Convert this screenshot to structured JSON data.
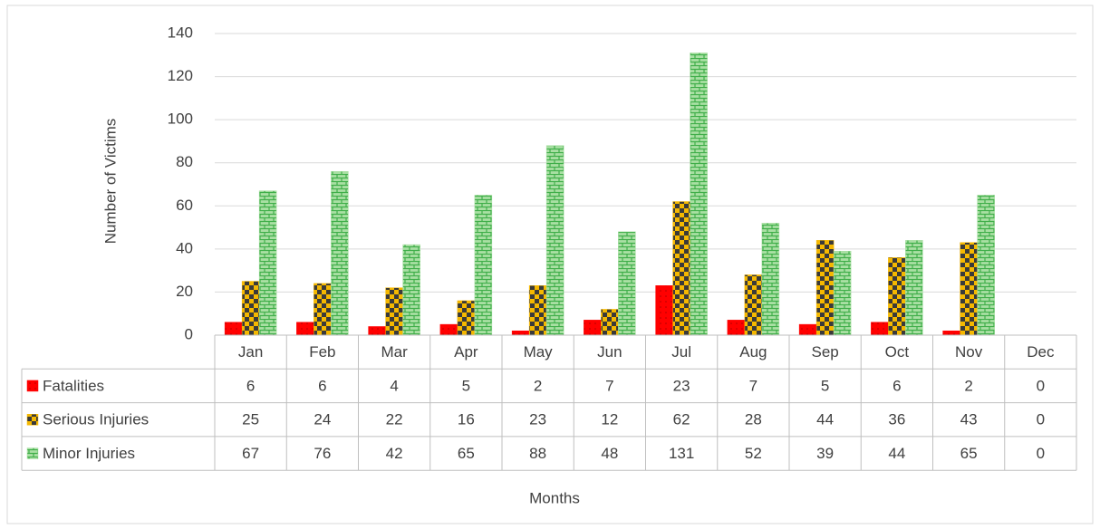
{
  "chart_data": {
    "type": "bar",
    "y_label": "Number of Victims",
    "x_label": "Months",
    "categories": [
      "Jan",
      "Feb",
      "Mar",
      "Apr",
      "May",
      "Jun",
      "Jul",
      "Aug",
      "Sep",
      "Oct",
      "Nov",
      "Dec"
    ],
    "series": [
      {
        "name": "Fatalities",
        "color": "#ff0000",
        "values": [
          6,
          6,
          4,
          5,
          2,
          7,
          23,
          7,
          5,
          6,
          2,
          0
        ]
      },
      {
        "name": "Serious Injuries",
        "color": "#f5b800",
        "values": [
          25,
          24,
          22,
          16,
          23,
          12,
          62,
          28,
          44,
          36,
          43,
          0
        ]
      },
      {
        "name": "Minor Injuries",
        "color": "#a9dfa3",
        "values": [
          67,
          76,
          42,
          65,
          88,
          48,
          131,
          52,
          39,
          44,
          65,
          0
        ]
      }
    ],
    "ylim": [
      0,
      140
    ],
    "yticks": [
      0,
      20,
      40,
      60,
      80,
      100,
      120,
      140
    ],
    "grid": true,
    "data_table": true
  }
}
